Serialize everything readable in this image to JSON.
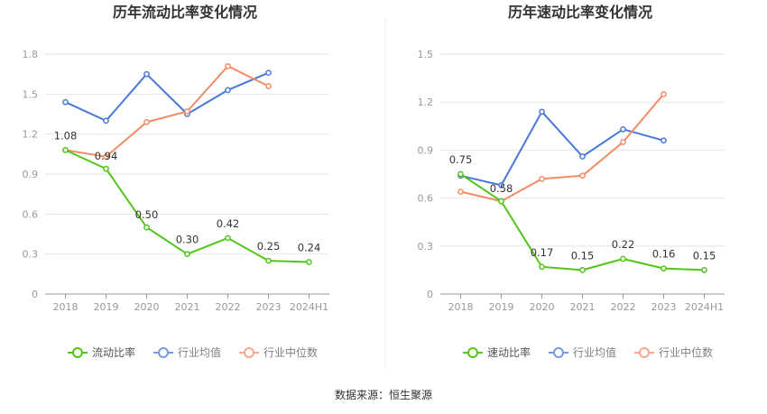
{
  "source": "数据来源：恒生聚源",
  "colors": {
    "main": "#52c41a",
    "avg": "#4a78d8",
    "median": "#f28c66",
    "grid": "#e6e6e6",
    "axis": "#999999"
  },
  "chart_data": [
    {
      "type": "line",
      "title": "历年流动比率变化情况",
      "categories": [
        "2018",
        "2019",
        "2020",
        "2021",
        "2022",
        "2023",
        "2024H1"
      ],
      "ylim": [
        0,
        1.8
      ],
      "yticks": [
        0,
        0.3,
        0.6,
        0.9,
        1.2,
        1.5,
        1.8
      ],
      "ytick_labels": [
        "0",
        "0.3",
        "0.6",
        "0.9",
        "1.2",
        "1.5",
        "1.8"
      ],
      "grid": true,
      "legend_position": "bottom",
      "series": [
        {
          "name": "流动比率",
          "key": "main",
          "values": [
            1.08,
            0.94,
            0.5,
            0.3,
            0.42,
            0.25,
            0.24
          ],
          "labels": [
            "1.08",
            "0.94",
            "0.50",
            "0.30",
            "0.42",
            "0.25",
            "0.24"
          ]
        },
        {
          "name": "行业均值",
          "key": "avg",
          "values": [
            1.44,
            1.3,
            1.65,
            1.35,
            1.53,
            1.66,
            null
          ]
        },
        {
          "name": "行业中位数",
          "key": "median",
          "values": [
            1.08,
            1.03,
            1.29,
            1.37,
            1.71,
            1.56,
            null
          ]
        }
      ]
    },
    {
      "type": "line",
      "title": "历年速动比率变化情况",
      "categories": [
        "2018",
        "2019",
        "2020",
        "2021",
        "2022",
        "2023",
        "2024H1"
      ],
      "ylim": [
        0,
        1.5
      ],
      "yticks": [
        0,
        0.3,
        0.6,
        0.9,
        1.2,
        1.5
      ],
      "ytick_labels": [
        "0",
        "0.3",
        "0.6",
        "0.9",
        "1.2",
        "1.5"
      ],
      "grid": true,
      "legend_position": "bottom",
      "series": [
        {
          "name": "速动比率",
          "key": "main",
          "values": [
            0.75,
            0.58,
            0.17,
            0.15,
            0.22,
            0.16,
            0.15
          ],
          "labels": [
            "0.75",
            "0.58",
            "0.17",
            "0.15",
            "0.22",
            "0.16",
            "0.15"
          ]
        },
        {
          "name": "行业均值",
          "key": "avg",
          "values": [
            0.74,
            0.68,
            1.14,
            0.86,
            1.03,
            0.96,
            null
          ]
        },
        {
          "name": "行业中位数",
          "key": "median",
          "values": [
            0.64,
            0.58,
            0.72,
            0.74,
            0.95,
            1.25,
            null
          ]
        }
      ]
    }
  ]
}
